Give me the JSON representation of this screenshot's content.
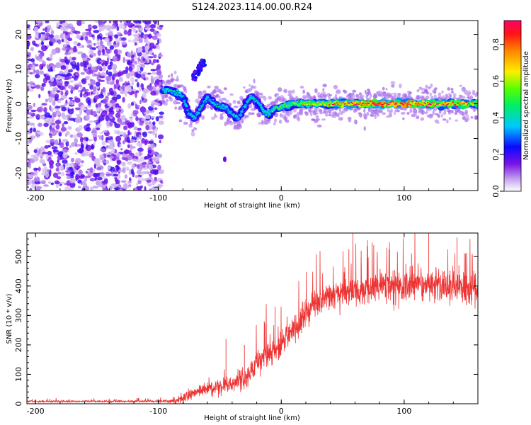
{
  "figure": {
    "title": "S124.2023.114.00.00.R24"
  },
  "chart_data": [
    {
      "type": "heatmap",
      "xlabel": "Height of straight line (km)",
      "ylabel": "Frequency (Hz)",
      "xlim": [
        -207,
        160
      ],
      "ylim": [
        -25,
        24
      ],
      "x_ticks": [
        -200,
        -100,
        0,
        100
      ],
      "y_ticks": [
        -20,
        -10,
        0,
        10,
        20
      ],
      "grid": false,
      "colorbar": {
        "label": "Normalized spectral amplitude",
        "range": [
          0,
          0.93
        ],
        "ticks": [
          0.0,
          0.2,
          0.4,
          0.6,
          0.8
        ],
        "colormap": "rainbow (violet to red)"
      },
      "ridge_center_hz": [
        {
          "x": -95,
          "y": 4
        },
        {
          "x": -90,
          "y": 4
        },
        {
          "x": -85,
          "y": 3
        },
        {
          "x": -80,
          "y": 2
        },
        {
          "x": -75,
          "y": -3
        },
        {
          "x": -70,
          "y": -4
        },
        {
          "x": -65,
          "y": -1
        },
        {
          "x": -60,
          "y": 2
        },
        {
          "x": -55,
          "y": 0
        },
        {
          "x": -50,
          "y": -1
        },
        {
          "x": -45,
          "y": -1
        },
        {
          "x": -40,
          "y": -3
        },
        {
          "x": -35,
          "y": -4
        },
        {
          "x": -30,
          "y": -1
        },
        {
          "x": -25,
          "y": 2
        },
        {
          "x": -20,
          "y": 1
        },
        {
          "x": -15,
          "y": -2
        },
        {
          "x": -10,
          "y": -3
        },
        {
          "x": -5,
          "y": -1
        },
        {
          "x": 0,
          "y": -1
        },
        {
          "x": 10,
          "y": 0
        },
        {
          "x": 20,
          "y": 0
        },
        {
          "x": 40,
          "y": 0
        },
        {
          "x": 60,
          "y": 0
        },
        {
          "x": 80,
          "y": 0
        },
        {
          "x": 100,
          "y": 0
        },
        {
          "x": 120,
          "y": 0
        },
        {
          "x": 140,
          "y": 0
        },
        {
          "x": 160,
          "y": 0
        }
      ],
      "ridge_amplitude": [
        {
          "x": -95,
          "v": 0.35
        },
        {
          "x": -80,
          "v": 0.3
        },
        {
          "x": -60,
          "v": 0.3
        },
        {
          "x": -40,
          "v": 0.3
        },
        {
          "x": -20,
          "v": 0.3
        },
        {
          "x": 0,
          "v": 0.4
        },
        {
          "x": 20,
          "v": 0.55
        },
        {
          "x": 40,
          "v": 0.7
        },
        {
          "x": 60,
          "v": 0.8
        },
        {
          "x": 80,
          "v": 0.9
        },
        {
          "x": 100,
          "v": 0.85
        },
        {
          "x": 120,
          "v": 0.8
        },
        {
          "x": 140,
          "v": 0.75
        },
        {
          "x": 160,
          "v": 0.6
        }
      ],
      "noise_region_x": [
        -207,
        -97
      ],
      "noise_amplitude": 0.15
    },
    {
      "type": "line",
      "xlabel": "Height of straight line (km)",
      "ylabel": "SNR (10 * v/v)",
      "xlim": [
        -207,
        160
      ],
      "ylim": [
        0,
        580
      ],
      "x_ticks": [
        -200,
        -100,
        0,
        100
      ],
      "y_ticks": [
        0,
        100,
        200,
        300,
        400,
        500
      ],
      "grid": false,
      "series": [
        {
          "color": "#ee3333",
          "trend": [
            {
              "x": -207,
              "y": 8
            },
            {
              "x": -150,
              "y": 8
            },
            {
              "x": -100,
              "y": 8
            },
            {
              "x": -85,
              "y": 10
            },
            {
              "x": -75,
              "y": 30
            },
            {
              "x": -60,
              "y": 50
            },
            {
              "x": -50,
              "y": 60
            },
            {
              "x": -40,
              "y": 70
            },
            {
              "x": -30,
              "y": 85
            },
            {
              "x": -25,
              "y": 110
            },
            {
              "x": -20,
              "y": 140
            },
            {
              "x": -15,
              "y": 160
            },
            {
              "x": -10,
              "y": 170
            },
            {
              "x": -5,
              "y": 190
            },
            {
              "x": 0,
              "y": 200
            },
            {
              "x": 10,
              "y": 260
            },
            {
              "x": 20,
              "y": 310
            },
            {
              "x": 30,
              "y": 350
            },
            {
              "x": 40,
              "y": 370
            },
            {
              "x": 60,
              "y": 385
            },
            {
              "x": 80,
              "y": 395
            },
            {
              "x": 100,
              "y": 395
            },
            {
              "x": 120,
              "y": 405
            },
            {
              "x": 140,
              "y": 390
            },
            {
              "x": 160,
              "y": 395
            }
          ],
          "noise_amplitude": [
            {
              "x": -207,
              "y": 5
            },
            {
              "x": -100,
              "y": 5
            },
            {
              "x": -80,
              "y": 25
            },
            {
              "x": -50,
              "y": 45
            },
            {
              "x": -30,
              "y": 60
            },
            {
              "x": -10,
              "y": 75
            },
            {
              "x": 20,
              "y": 85
            },
            {
              "x": 60,
              "y": 80
            },
            {
              "x": 100,
              "y": 80
            },
            {
              "x": 130,
              "y": 95
            },
            {
              "x": 160,
              "y": 80
            }
          ],
          "peaks": [
            {
              "x": -45,
              "y": 220
            },
            {
              "x": -30,
              "y": 200
            },
            {
              "x": -5,
              "y": 330
            },
            {
              "x": 55,
              "y": 525
            },
            {
              "x": 65,
              "y": 520
            },
            {
              "x": 120,
              "y": 580
            },
            {
              "x": 143,
              "y": 565
            },
            {
              "x": 150,
              "y": 510
            },
            {
              "x": 160,
              "y": 515
            }
          ]
        }
      ]
    }
  ]
}
